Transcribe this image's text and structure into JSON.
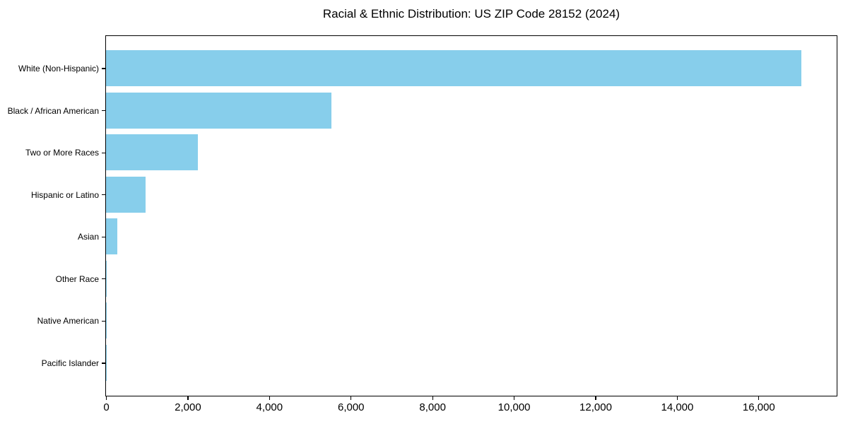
{
  "chart_data": {
    "type": "bar",
    "orientation": "horizontal",
    "title": "Racial & Ethnic Distribution: US ZIP Code 28152 (2024)",
    "categories": [
      "White (Non-Hispanic)",
      "Black / African American",
      "Two or More Races",
      "Hispanic or Latino",
      "Asian",
      "Other Race",
      "Native American",
      "Pacific Islander"
    ],
    "values": [
      17050,
      5530,
      2250,
      970,
      280,
      25,
      12,
      5
    ],
    "xlabel": "",
    "ylabel": "",
    "xlim": [
      0,
      17900
    ],
    "x_ticks": [
      0,
      2000,
      4000,
      6000,
      8000,
      10000,
      12000,
      14000,
      16000
    ],
    "x_tick_labels": [
      "0",
      "2,000",
      "4,000",
      "6,000",
      "8,000",
      "10,000",
      "12,000",
      "14,000",
      "16,000"
    ],
    "bar_color": "#87CEEB",
    "grid": false,
    "legend_position": "none",
    "background_color": "#ffffff",
    "spine_color": "#000000",
    "text_color": "#000000"
  }
}
